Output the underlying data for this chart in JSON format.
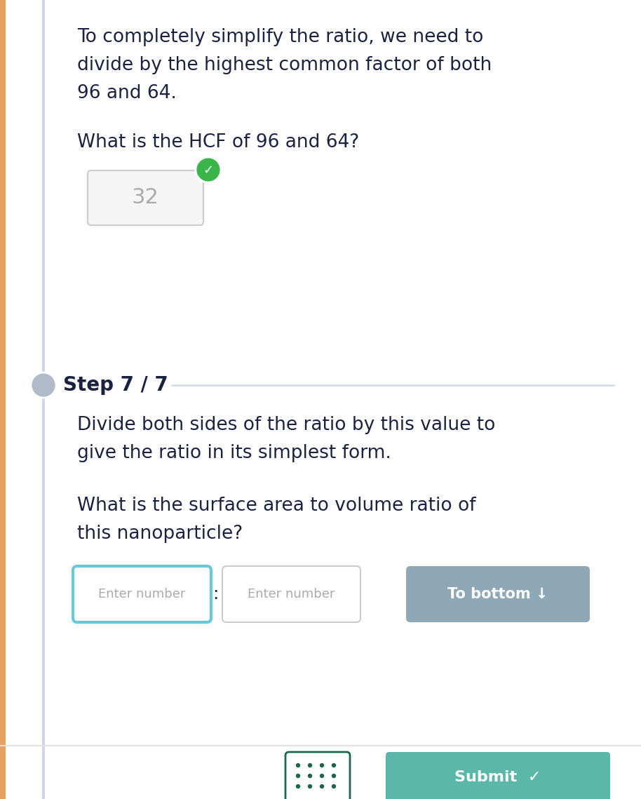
{
  "bg_color": "#ffffff",
  "left_accent_color": "#e8a060",
  "left_line_color": "#d0d5e8",
  "text_color": "#1a2240",
  "gray_text_color": "#aaaaaa",
  "para1_line1": "To completely simplify the ratio, we need to",
  "para1_line2": "divide by the highest common factor of both",
  "para1_line3": "96 and 64.",
  "question1": "What is the HCF of 96 and 64?",
  "answer1": "32",
  "step_label": "Step 7 / 7",
  "para2_line1": "Divide both sides of the ratio by this value to",
  "para2_line2": "give the ratio in its simplest form.",
  "question2_line1": "What is the surface area to volume ratio of",
  "question2_line2": "this nanoparticle?",
  "input1_placeholder": "Enter number",
  "colon": ":",
  "input2_placeholder": "Enter number",
  "button1_label": "To bottom ↓",
  "button1_color": "#8fa8b8",
  "input1_border_color": "#6bc8d8",
  "input2_border_color": "#cccccc",
  "green_check_color": "#3ab54a",
  "step_line_color": "#d0d8e8",
  "step_circle_color": "#b0bac8",
  "submit_btn_color": "#5bb8a8",
  "submit_btn_label": "Submit  ✓",
  "grid_icon_border": "#1a6650",
  "font_size_body": 19,
  "font_size_step": 20,
  "font_size_answer": 22
}
